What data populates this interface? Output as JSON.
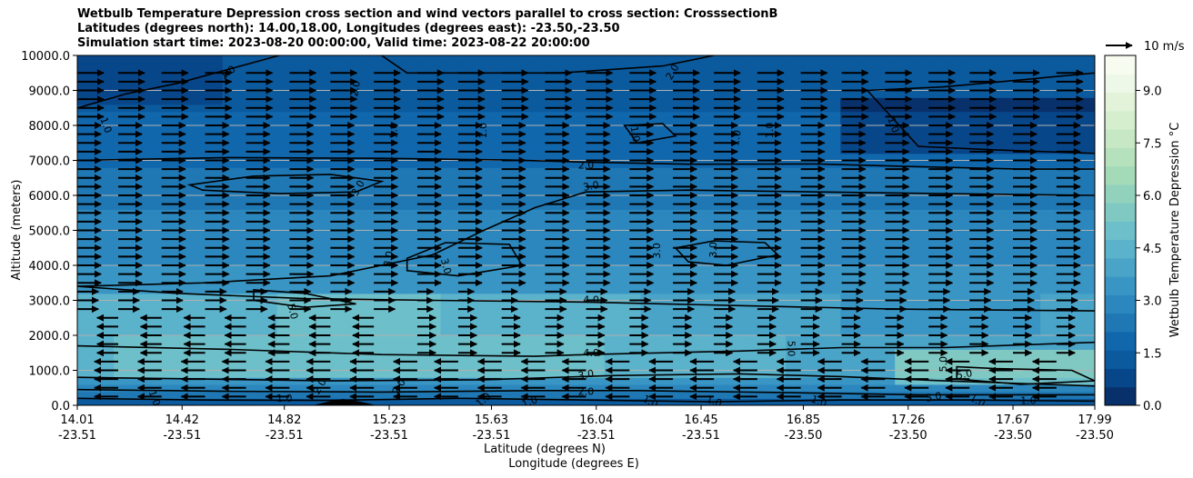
{
  "title": {
    "line1": "Wetbulb Temperature Depression cross section and wind vectors parallel to cross section: CrosssectionB",
    "line2": "Latitudes (degrees north): 14.00,18.00, Longitudes (degrees east): -23.50,-23.50",
    "line3": "Simulation start time: 2023-08-20 00:00:00, Valid time: 2023-08-22 20:00:00"
  },
  "quiver_key_label": "10 m/s",
  "colorbar_label": "Wetbulb Temperature Depression °C",
  "colors": {
    "colormap": [
      "#08306b",
      "#08468a",
      "#0b5a9e",
      "#1167ac",
      "#1f78b4",
      "#2b87bd",
      "#3995c4",
      "#49a4c8",
      "#5bb2cb",
      "#6dbfc9",
      "#80c9c3",
      "#92d2bd",
      "#a5dab9",
      "#b6e1bd",
      "#c6e8c4",
      "#d5eecd",
      "#e2f3da",
      "#eef8e8",
      "#f7fcf0"
    ],
    "contour": "#000000",
    "grid": "#b0b0b0"
  },
  "chart_data": {
    "type": "contourf_cross_section",
    "xlabel": "Latitude (degrees N)",
    "xlabel2": "Longitude (degrees E)",
    "ylabel": "Altitude (meters)",
    "xlim": [
      14.01,
      17.99
    ],
    "ylim": [
      0,
      10000
    ],
    "x_ticks": [
      {
        "lat": "14.01",
        "lon": "-23.51"
      },
      {
        "lat": "14.42",
        "lon": "-23.51"
      },
      {
        "lat": "14.82",
        "lon": "-23.51"
      },
      {
        "lat": "15.23",
        "lon": "-23.51"
      },
      {
        "lat": "15.63",
        "lon": "-23.51"
      },
      {
        "lat": "16.04",
        "lon": "-23.51"
      },
      {
        "lat": "16.45",
        "lon": "-23.51"
      },
      {
        "lat": "16.85",
        "lon": "-23.50"
      },
      {
        "lat": "17.26",
        "lon": "-23.50"
      },
      {
        "lat": "17.67",
        "lon": "-23.50"
      },
      {
        "lat": "17.99",
        "lon": "-23.50"
      }
    ],
    "y_ticks": [
      "0.0",
      "1000.0",
      "2000.0",
      "3000.0",
      "4000.0",
      "5000.0",
      "6000.0",
      "7000.0",
      "8000.0",
      "9000.0",
      "10000.0"
    ],
    "grid": "horizontal",
    "colorbar": {
      "range": [
        0,
        10
      ],
      "ticks": [
        "0.0",
        "1.5",
        "3.0",
        "4.5",
        "6.0",
        "7.5",
        "9.0"
      ],
      "tick_values": [
        0,
        1.5,
        3.0,
        4.5,
        6.0,
        7.5,
        9.0
      ]
    },
    "contour_levels": [
      1.0,
      2.0,
      3.0,
      4.0,
      5.0
    ],
    "contour_labels": [
      {
        "text": "1.0",
        "x": 14.6,
        "y": 9500,
        "rot": -35
      },
      {
        "text": "1.0",
        "x": 14.12,
        "y": 8000,
        "rot": 70
      },
      {
        "text": "2.0",
        "x": 15.1,
        "y": 9050,
        "rot": -80
      },
      {
        "text": "1.0",
        "x": 15.25,
        "y": 7850,
        "rot": -90
      },
      {
        "text": "1.0",
        "x": 15.6,
        "y": 7850,
        "rot": -90
      },
      {
        "text": "2.0",
        "x": 16.34,
        "y": 9520,
        "rot": -60
      },
      {
        "text": "1.0",
        "x": 16.19,
        "y": 7750,
        "rot": 80
      },
      {
        "text": "1.0",
        "x": 16.59,
        "y": 7640,
        "rot": -80
      },
      {
        "text": "1.0",
        "x": 16.72,
        "y": 7860,
        "rot": -90
      },
      {
        "text": "1.0",
        "x": 17.2,
        "y": 8010,
        "rot": 70
      },
      {
        "text": "2.0",
        "x": 16.0,
        "y": 6840,
        "rot": 0
      },
      {
        "text": "3.0",
        "x": 16.02,
        "y": 6250,
        "rot": -10
      },
      {
        "text": "3.0",
        "x": 15.11,
        "y": 6200,
        "rot": -60
      },
      {
        "text": "3.0",
        "x": 15.23,
        "y": 4180,
        "rot": -80
      },
      {
        "text": "3.0",
        "x": 15.45,
        "y": 3970,
        "rot": 75
      },
      {
        "text": "3.0",
        "x": 16.28,
        "y": 4420,
        "rot": -90
      },
      {
        "text": "3.0",
        "x": 16.5,
        "y": 4450,
        "rot": -90
      },
      {
        "text": "5.0",
        "x": 14.85,
        "y": 2680,
        "rot": 75
      },
      {
        "text": "4.0",
        "x": 16.02,
        "y": 3000,
        "rot": 0
      },
      {
        "text": "4.0",
        "x": 16.02,
        "y": 1480,
        "rot": 0
      },
      {
        "text": "5.0",
        "x": 16.8,
        "y": 1620,
        "rot": 90
      },
      {
        "text": "5.0",
        "x": 17.4,
        "y": 1180,
        "rot": -90
      },
      {
        "text": "5.0",
        "x": 17.48,
        "y": 870,
        "rot": -10
      },
      {
        "text": "3.0",
        "x": 16.0,
        "y": 860,
        "rot": -10
      },
      {
        "text": "2.0",
        "x": 16.0,
        "y": 380,
        "rot": 0
      },
      {
        "text": "2.0",
        "x": 15.27,
        "y": 520,
        "rot": -60
      },
      {
        "text": "1.0",
        "x": 14.82,
        "y": 180,
        "rot": 0
      },
      {
        "text": "1.0",
        "x": 14.31,
        "y": 200,
        "rot": 70
      },
      {
        "text": "2.0",
        "x": 14.96,
        "y": 530,
        "rot": -60
      },
      {
        "text": "1.0",
        "x": 15.6,
        "y": 140,
        "rot": -40
      },
      {
        "text": "1.0",
        "x": 15.78,
        "y": 80,
        "rot": -20
      },
      {
        "text": "1.0",
        "x": 16.25,
        "y": 90,
        "rot": 30
      },
      {
        "text": "1.0",
        "x": 16.5,
        "y": 100,
        "rot": 20
      },
      {
        "text": "1.0",
        "x": 16.91,
        "y": 100,
        "rot": 20
      },
      {
        "text": "3.0",
        "x": 17.36,
        "y": 220,
        "rot": -10
      },
      {
        "text": "1.0",
        "x": 17.53,
        "y": 120,
        "rot": 30
      },
      {
        "text": "1.0",
        "x": 17.73,
        "y": 120,
        "rot": 0
      }
    ],
    "wind_vectors": {
      "reference_speed_ms": 10,
      "levels_m": [
        250,
        500,
        750,
        1000,
        1250,
        1500,
        1750,
        2000,
        2250,
        2500,
        2750,
        3000,
        3250,
        3500,
        3750,
        4000,
        4250,
        4500,
        4750,
        5000,
        5250,
        5500,
        5750,
        6000,
        6250,
        6500,
        6750,
        7000,
        7250,
        7500,
        7750,
        8000,
        8250,
        8500,
        8750,
        9000,
        9250,
        9500
      ],
      "lat_positions_deg": [
        14.01,
        14.17,
        14.34,
        14.51,
        14.67,
        14.84,
        15.0,
        15.17,
        15.34,
        15.5,
        15.67,
        15.84,
        16.0,
        16.17,
        16.34,
        16.5,
        16.67,
        16.84,
        17.0,
        17.17,
        17.34,
        17.5,
        17.67,
        17.84
      ],
      "description": "winds mostly from west (positive) above ~3500 m, from east (negative) below ~2500 m"
    }
  }
}
